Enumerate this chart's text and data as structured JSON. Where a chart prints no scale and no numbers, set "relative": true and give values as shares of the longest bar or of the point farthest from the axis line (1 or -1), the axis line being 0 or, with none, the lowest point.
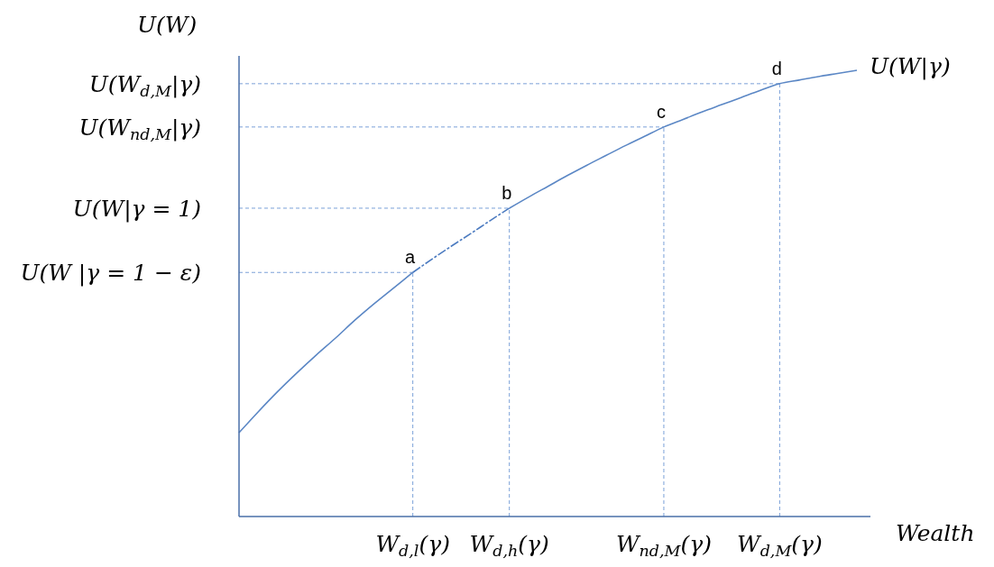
{
  "chart_data": {
    "type": "line",
    "relative": true,
    "ylabel": "U(W)",
    "xlabel": "Wealth",
    "categories": [
      null,
      null,
      null,
      null,
      null,
      null,
      null,
      null,
      null,
      "W$_{d,l}$(γ)",
      null,
      null,
      null,
      null,
      "W$_{d,h}$(γ)",
      null,
      null,
      null,
      null,
      null,
      null,
      null,
      "W$_{nd,M}$(γ)",
      null,
      null,
      null,
      null,
      null,
      "W$_{d,M}$(γ)",
      null,
      null,
      null,
      null
    ],
    "series": [
      {
        "name": "U(W|γ)",
        "color": "#5b87c5",
        "line_style": "solid",
        "values": [
          0.188,
          0.235,
          0.28,
          0.322,
          0.362,
          0.4,
          0.44,
          0.477,
          0.512,
          0.547,
          null,
          null,
          null,
          null,
          0.691,
          0.716,
          0.74,
          0.764,
          0.787,
          0.809,
          0.831,
          0.852,
          0.873,
          0.89,
          0.907,
          0.923,
          0.939,
          0.955,
          0.97,
          0.978,
          0.986,
          0.993,
          1.0
        ]
      },
      {
        "color": "#4c7bc0",
        "line_style": "dashed",
        "values": [
          null,
          null,
          null,
          null,
          null,
          null,
          null,
          null,
          null,
          0.547,
          0.577,
          0.606,
          0.634,
          0.663,
          0.691,
          null,
          null,
          null,
          null,
          null,
          null,
          null,
          null,
          null,
          null,
          null,
          null,
          null,
          null,
          null,
          null,
          null,
          null
        ]
      }
    ],
    "ref_lines": [
      {
        "axis": "y",
        "value": 0.97,
        "label": "U(W$_{d,M}$|γ)",
        "color": "#7aa0d8",
        "line_style": "dashed"
      },
      {
        "axis": "y",
        "value": 0.873,
        "label": "U(W$_{nd,M}$|γ)",
        "color": "#7aa0d8",
        "line_style": "dashed"
      },
      {
        "axis": "y",
        "value": 0.691,
        "label": "U(W|γ = 1)",
        "color": "#7aa0d8",
        "line_style": "dashed"
      },
      {
        "axis": "y",
        "value": 0.547,
        "label": "U(W |γ = 1 − ε)",
        "color": "#7aa0d8",
        "line_style": "dashed"
      },
      {
        "axis": "x",
        "value": "W$_{d,l}$(γ)",
        "label": null,
        "color": "#7aa0d8",
        "line_style": "dashed"
      },
      {
        "axis": "x",
        "value": "W$_{d,h}$(γ)",
        "label": null,
        "color": "#7aa0d8",
        "line_style": "dashed"
      },
      {
        "axis": "x",
        "value": "W$_{nd,M}$(γ)",
        "label": null,
        "color": "#7aa0d8",
        "line_style": "dashed"
      },
      {
        "axis": "x",
        "value": "W$_{d,M}$(γ)",
        "label": null,
        "color": "#7aa0d8",
        "line_style": "dashed"
      }
    ],
    "annotations": [
      {
        "text": "a",
        "x": "W$_{d,l}$(γ)",
        "y": 0.547
      },
      {
        "text": "b",
        "x": "W$_{d,h}$(γ)",
        "y": 0.691
      },
      {
        "text": "c",
        "x": "W$_{nd,M}$(γ)",
        "y": 0.873
      },
      {
        "text": "d",
        "x": "W$_{d,M}$(γ)",
        "y": 0.97
      }
    ]
  }
}
